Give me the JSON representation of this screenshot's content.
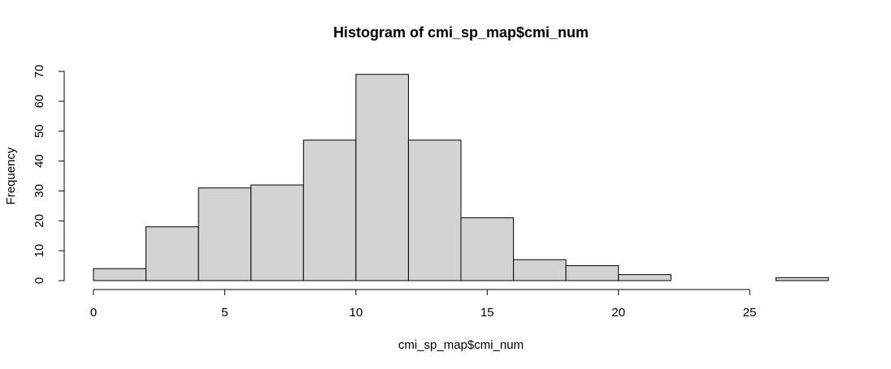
{
  "chart_data": {
    "type": "bar",
    "title": "Histogram of cmi_sp_map$cmi_num",
    "xlabel": "cmi_sp_map$cmi_num",
    "ylabel": "Frequency",
    "bins": [
      {
        "from": 0,
        "to": 2,
        "count": 4
      },
      {
        "from": 2,
        "to": 4,
        "count": 18
      },
      {
        "from": 4,
        "to": 6,
        "count": 31
      },
      {
        "from": 6,
        "to": 8,
        "count": 32
      },
      {
        "from": 8,
        "to": 10,
        "count": 47
      },
      {
        "from": 10,
        "to": 12,
        "count": 69
      },
      {
        "from": 12,
        "to": 14,
        "count": 47
      },
      {
        "from": 14,
        "to": 16,
        "count": 21
      },
      {
        "from": 16,
        "to": 18,
        "count": 7
      },
      {
        "from": 18,
        "to": 20,
        "count": 5
      },
      {
        "from": 20,
        "to": 22,
        "count": 2
      },
      {
        "from": 22,
        "to": 24,
        "count": 0
      },
      {
        "from": 24,
        "to": 26,
        "count": 0
      },
      {
        "from": 26,
        "to": 28,
        "count": 1
      }
    ],
    "x_ticks": [
      0,
      5,
      10,
      15,
      20,
      25
    ],
    "y_ticks": [
      0,
      10,
      20,
      30,
      40,
      50,
      60,
      70
    ],
    "xlim": [
      0,
      28
    ],
    "ylim": [
      0,
      70
    ],
    "bar_color": "#d3d3d3",
    "grid": false,
    "legend": "none"
  }
}
